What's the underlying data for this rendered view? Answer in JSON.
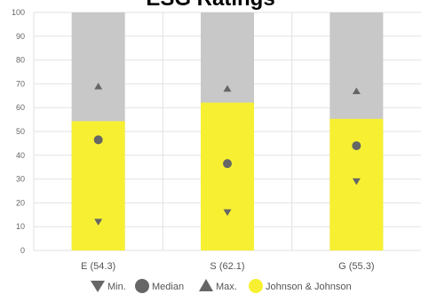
{
  "chart_data": {
    "type": "bar",
    "title": "ESG Ratings",
    "categories": [
      "E (54.3)",
      "S (62.1)",
      "G (55.3)"
    ],
    "ylim": [
      0,
      100
    ],
    "yticks": [
      0,
      10,
      20,
      30,
      40,
      50,
      60,
      70,
      80,
      90,
      100
    ],
    "grid": true,
    "legend_position": "bottom",
    "background_value": 100,
    "series": [
      {
        "name": "Johnson & Johnson",
        "kind": "bar",
        "values": [
          54.3,
          62.1,
          55.3
        ],
        "color": "#f7f032"
      },
      {
        "name": "Min.",
        "kind": "marker",
        "marker": "triangle-down",
        "values": [
          12,
          16,
          29
        ],
        "color": "#666666"
      },
      {
        "name": "Median",
        "kind": "marker",
        "marker": "circle",
        "values": [
          46.5,
          36.5,
          44
        ],
        "color": "#666666"
      },
      {
        "name": "Max.",
        "kind": "marker",
        "marker": "triangle-up",
        "values": [
          69,
          68,
          67
        ],
        "color": "#666666"
      }
    ],
    "colors": {
      "background_bar": "#c8c8c8",
      "grid": "#e2e2e2"
    }
  }
}
